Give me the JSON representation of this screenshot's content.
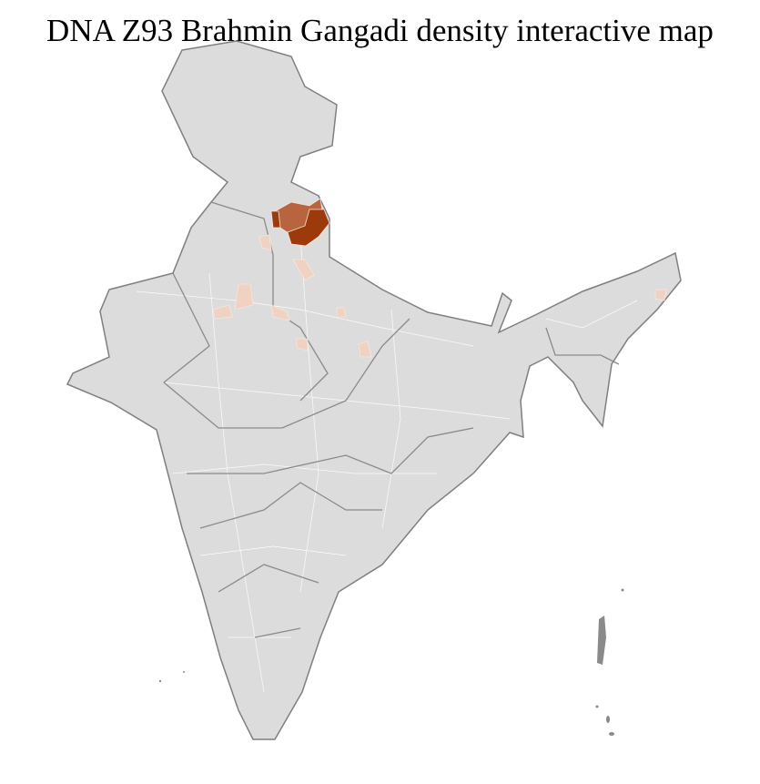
{
  "title": "DNA Z93 Brahmin Gangadi density interactive map",
  "map": {
    "region": "India districts",
    "base_color": "#dcdcdc",
    "border_color": "#7f7f7f",
    "district_line_color": "#ffffff",
    "density_scale": [
      {
        "level": "high",
        "color": "#9c3a0c"
      },
      {
        "level": "medium",
        "color": "#b8653f"
      },
      {
        "level": "low",
        "color": "#f0d2c2"
      }
    ]
  }
}
